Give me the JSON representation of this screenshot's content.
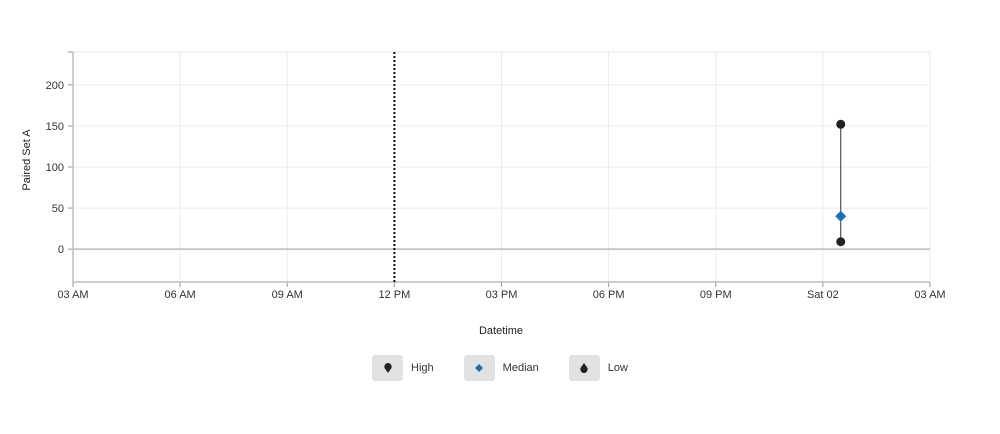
{
  "chart_data": {
    "type": "scatter",
    "xlabel": "Datetime",
    "ylabel": "Paired Set A",
    "x_ticks": [
      "03 AM",
      "06 AM",
      "09 AM",
      "12 PM",
      "03 PM",
      "06 PM",
      "09 PM",
      "Sat 02",
      "03 AM"
    ],
    "y_ticks": [
      0,
      50,
      100,
      150,
      200
    ],
    "ylim": [
      -40,
      240
    ],
    "xlim_hours": [
      0,
      24
    ],
    "grid": true,
    "legend_position": "bottom",
    "reference_line": {
      "x_hour": 9,
      "style": "dotted"
    },
    "series": [
      {
        "name": "High",
        "color": "#222222",
        "marker": "circle",
        "points": [
          {
            "x_hour": 21.5,
            "y": 152
          }
        ]
      },
      {
        "name": "Median",
        "color": "#1f6fb2",
        "marker": "diamond",
        "points": [
          {
            "x_hour": 21.5,
            "y": 40
          }
        ]
      },
      {
        "name": "Low",
        "color": "#222222",
        "marker": "circle",
        "points": [
          {
            "x_hour": 21.5,
            "y": 9
          }
        ]
      }
    ]
  }
}
